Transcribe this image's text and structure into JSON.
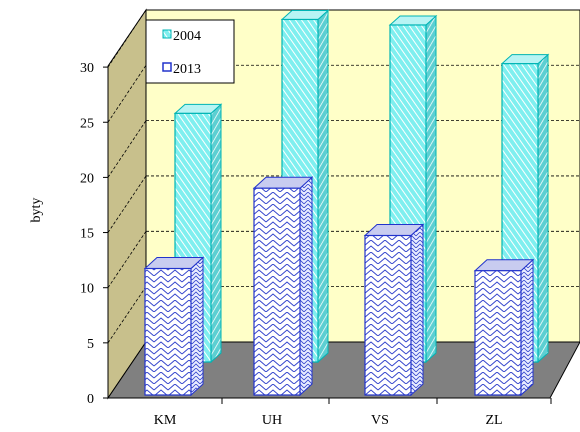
{
  "chart_data": {
    "type": "bar",
    "ylabel": "byty",
    "categories": [
      "KM",
      "UH",
      "VS",
      "ZL"
    ],
    "series": [
      {
        "name": "2004",
        "values": [
          22.5,
          31.0,
          30.5,
          27.0
        ]
      },
      {
        "name": "2013",
        "values": [
          11.5,
          18.8,
          14.5,
          11.3
        ]
      }
    ],
    "yticks": [
      0,
      5,
      10,
      15,
      20,
      25,
      30
    ],
    "ylim": [
      0,
      32
    ],
    "grid": true,
    "legend_position": "top-left",
    "colors": {
      "s2004_fill": "#7FEFEF",
      "s2004_stroke": "#00B4B4",
      "s2013_fill": "#FFFFFF",
      "s2013_stroke": "#2233CC",
      "back_wall": "#FFFFC8",
      "side_wall": "#C8C08C",
      "floor": "#808080"
    }
  }
}
